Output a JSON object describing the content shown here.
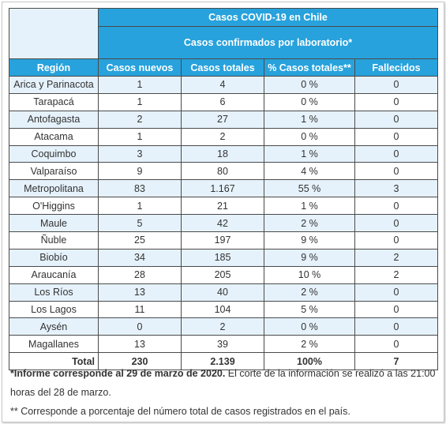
{
  "table": {
    "title": "Casos COVID-19 en Chile",
    "subtitle": "Casos confirmados por laboratorio*",
    "columns": [
      "Región",
      "Casos nuevos",
      "Casos totales",
      "% Casos totales**",
      "Fallecidos"
    ],
    "rows": [
      [
        "Arica y Parinacota",
        "1",
        "4",
        "0 %",
        "0"
      ],
      [
        "Tarapacá",
        "1",
        "6",
        "0 %",
        "0"
      ],
      [
        "Antofagasta",
        "2",
        "27",
        "1 %",
        "0"
      ],
      [
        "Atacama",
        "1",
        "2",
        "0 %",
        "0"
      ],
      [
        "Coquimbo",
        "3",
        "18",
        "1 %",
        "0"
      ],
      [
        "Valparaíso",
        "9",
        "80",
        "4 %",
        "0"
      ],
      [
        "Metropolitana",
        "83",
        "1.167",
        "55 %",
        "3"
      ],
      [
        "O'Higgins",
        "1",
        "21",
        "1 %",
        "0"
      ],
      [
        "Maule",
        "5",
        "42",
        "2 %",
        "0"
      ],
      [
        "Ñuble",
        "25",
        "197",
        "9 %",
        "0"
      ],
      [
        "Biobío",
        "34",
        "185",
        "9 %",
        "2"
      ],
      [
        "Araucanía",
        "28",
        "205",
        "10 %",
        "2"
      ],
      [
        "Los Ríos",
        "13",
        "40",
        "2 %",
        "0"
      ],
      [
        "Los Lagos",
        "11",
        "104",
        "5 %",
        "0"
      ],
      [
        "Aysén",
        "0",
        "2",
        "0 %",
        "0"
      ],
      [
        "Magallanes",
        "13",
        "39",
        "2 %",
        "0"
      ]
    ],
    "total": [
      "Total",
      "230",
      "2.139",
      "100%",
      "7"
    ]
  },
  "notes": {
    "note1_bold": "*Informe corresponde al 29 de marzo de 2020.",
    "note1_rest": " El corte de la información se realizó a las 21:00 horas del 28 de marzo.",
    "note2": "** Corresponde a porcentaje del número total de casos registrados en el país."
  },
  "colors": {
    "header_bg": "#27a2dc",
    "stripe_bg": "#e6f2fb",
    "border": "#4a4a4a",
    "text": "#333333"
  }
}
